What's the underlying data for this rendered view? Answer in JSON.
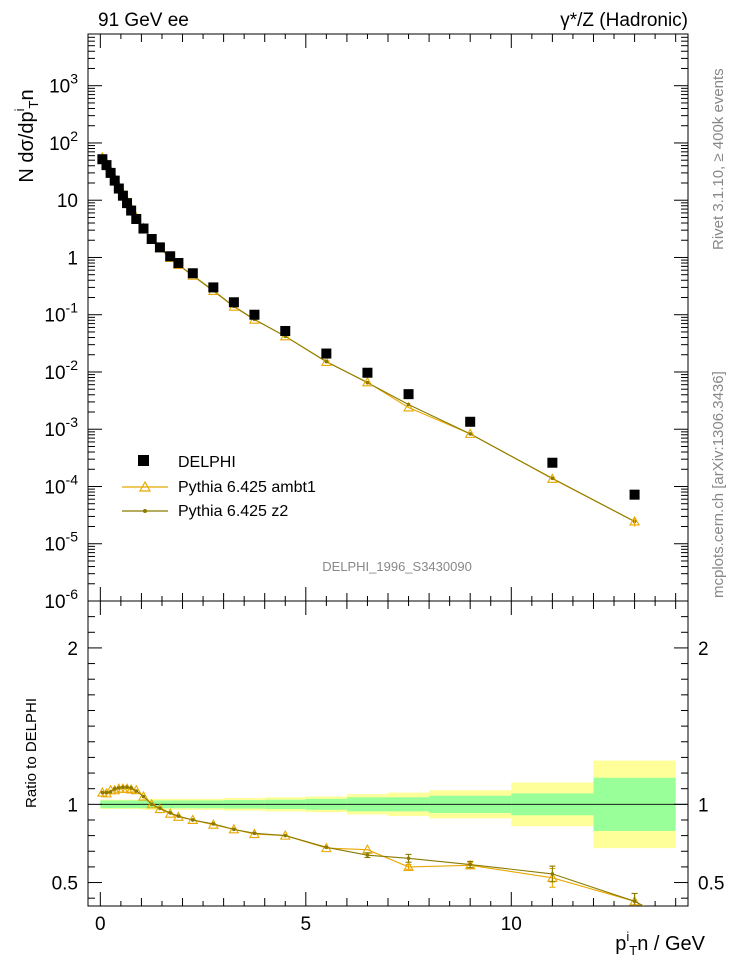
{
  "header": {
    "left": "91 GeV ee",
    "right": "γ*/Z (Hadronic)"
  },
  "side_labels": {
    "rivet": "Rivet 3.1.10, ≥ 400k events",
    "mcplots": "mcplots.cern.ch [arXiv:1306.3436]"
  },
  "watermark": "DELPHI_1996_S3430090",
  "colors": {
    "data": "#000000",
    "ambt1": "#e8a800",
    "z2": "#8b7a00",
    "band_inner": "#99ff99",
    "band_outer": "#ffff99"
  },
  "chart_data": [
    {
      "type": "scatter",
      "ylabel": "N dσ/dp_T^in",
      "yscale": "log",
      "xlim": [
        -0.3,
        14.3
      ],
      "ylim": [
        1e-06,
        8000
      ],
      "ytick_labels": [
        {
          "base": "10",
          "exp": "-6",
          "value": 1e-06
        },
        {
          "base": "10",
          "exp": "-5",
          "value": 1e-05
        },
        {
          "base": "10",
          "exp": "-4",
          "value": 0.0001
        },
        {
          "base": "10",
          "exp": "-3",
          "value": 0.001
        },
        {
          "base": "10",
          "exp": "-2",
          "value": 0.01
        },
        {
          "base": "10",
          "exp": "-1",
          "value": 0.1
        },
        {
          "base": "1",
          "exp": "",
          "value": 1
        },
        {
          "base": "10",
          "exp": "",
          "value": 10
        },
        {
          "base": "10",
          "exp": "2",
          "value": 100
        },
        {
          "base": "10",
          "exp": "3",
          "value": 1000
        }
      ],
      "legend_position": "bottom-left",
      "series": [
        {
          "name": "DELPHI",
          "x": [
            0.05,
            0.15,
            0.25,
            0.35,
            0.45,
            0.55,
            0.65,
            0.75,
            0.875,
            1.05,
            1.25,
            1.45,
            1.7,
            1.9,
            2.25,
            2.75,
            3.25,
            3.75,
            4.5,
            5.5,
            6.5,
            7.5,
            9.0,
            11.0,
            13.0
          ],
          "y": [
            52,
            41,
            30,
            22,
            16,
            12,
            8.9,
            6.6,
            4.7,
            3.2,
            2.1,
            1.5,
            1.05,
            0.8,
            0.53,
            0.3,
            0.165,
            0.1,
            0.052,
            0.021,
            0.0097,
            0.0041,
            0.00135,
            0.00026,
            7.2e-05
          ]
        },
        {
          "name": "Pythia 6.425 ambt1",
          "x": [
            0.05,
            0.15,
            0.25,
            0.35,
            0.45,
            0.55,
            0.65,
            0.75,
            0.875,
            1.05,
            1.25,
            1.45,
            1.7,
            1.9,
            2.25,
            2.75,
            3.25,
            3.75,
            4.5,
            5.5,
            6.5,
            7.5,
            9.0,
            11.0,
            13.0
          ],
          "y": [
            56,
            44,
            33,
            24,
            17.5,
            13.2,
            9.7,
            7.2,
            5.0,
            3.3,
            2.1,
            1.45,
            0.98,
            0.74,
            0.48,
            0.26,
            0.138,
            0.082,
            0.042,
            0.015,
            0.0066,
            0.0024,
            0.00083,
            0.000136,
            2.45e-05
          ]
        },
        {
          "name": "Pythia 6.425 z2",
          "x": [
            0.05,
            0.15,
            0.25,
            0.35,
            0.45,
            0.55,
            0.65,
            0.75,
            0.875,
            1.05,
            1.25,
            1.45,
            1.7,
            1.9,
            2.25,
            2.75,
            3.25,
            3.75,
            4.5,
            5.5,
            6.5,
            7.5,
            9.0,
            11.0,
            13.0
          ],
          "y": [
            56,
            44,
            32.5,
            24,
            17.6,
            13.3,
            9.8,
            7.3,
            5.1,
            3.3,
            2.1,
            1.46,
            0.99,
            0.745,
            0.485,
            0.265,
            0.14,
            0.083,
            0.042,
            0.0152,
            0.0065,
            0.0027,
            0.00083,
            0.000139,
            2.45e-05
          ]
        }
      ]
    },
    {
      "type": "line",
      "ylabel": "Ratio to DELPHI",
      "xlabel": "p_T^in / GeV",
      "xlim": [
        -0.3,
        14.3
      ],
      "ylim": [
        0.35,
        2.3
      ],
      "xticks": [
        0,
        5,
        10
      ],
      "yticks": [
        0.5,
        1,
        2
      ],
      "bands": [
        {
          "xlo": 0.0,
          "xhi": 1.0,
          "inner": 0.025,
          "outer": 0.03
        },
        {
          "xlo": 1.0,
          "xhi": 2.0,
          "inner": 0.025,
          "outer": 0.035
        },
        {
          "xlo": 2.0,
          "xhi": 3.0,
          "inner": 0.025,
          "outer": 0.035
        },
        {
          "xlo": 3.0,
          "xhi": 4.0,
          "inner": 0.027,
          "outer": 0.04
        },
        {
          "xlo": 4.0,
          "xhi": 5.0,
          "inner": 0.03,
          "outer": 0.045
        },
        {
          "xlo": 5.0,
          "xhi": 6.0,
          "inner": 0.035,
          "outer": 0.05
        },
        {
          "xlo": 6.0,
          "xhi": 7.0,
          "inner": 0.045,
          "outer": 0.065
        },
        {
          "xlo": 7.0,
          "xhi": 8.0,
          "inner": 0.045,
          "outer": 0.075
        },
        {
          "xlo": 8.0,
          "xhi": 10.0,
          "inner": 0.055,
          "outer": 0.09
        },
        {
          "xlo": 10.0,
          "xhi": 12.0,
          "inner": 0.07,
          "outer": 0.14
        },
        {
          "xlo": 12.0,
          "xhi": 14.0,
          "inner": 0.17,
          "outer": 0.28
        }
      ],
      "series": [
        {
          "name": "Pythia 6.425 ambt1",
          "x": [
            0.05,
            0.15,
            0.25,
            0.35,
            0.45,
            0.55,
            0.65,
            0.75,
            0.875,
            1.05,
            1.25,
            1.45,
            1.7,
            1.9,
            2.25,
            2.75,
            3.25,
            3.75,
            4.5,
            5.5,
            6.5,
            7.5,
            9.0,
            11.0,
            13.0,
            14.3
          ],
          "y": [
            1.075,
            1.07,
            1.09,
            1.09,
            1.1,
            1.1,
            1.1,
            1.095,
            1.09,
            1.05,
            1.0,
            0.97,
            0.94,
            0.92,
            0.9,
            0.87,
            0.84,
            0.81,
            0.8,
            0.72,
            0.71,
            0.6,
            0.61,
            0.53,
            0.38,
            0.2
          ],
          "yerr": [
            0,
            0,
            0,
            0,
            0,
            0,
            0,
            0,
            0,
            0,
            0,
            0,
            0,
            0,
            0,
            0,
            0,
            0,
            0,
            0,
            0,
            0.015,
            0.02,
            0.06,
            0.05,
            0
          ]
        },
        {
          "name": "Pythia 6.425 z2",
          "x": [
            0.05,
            0.15,
            0.25,
            0.35,
            0.45,
            0.55,
            0.65,
            0.75,
            0.875,
            1.05,
            1.25,
            1.45,
            1.7,
            1.9,
            2.25,
            2.75,
            3.25,
            3.75,
            4.5,
            5.5,
            6.5,
            7.5,
            9.0,
            11.0,
            13.0,
            14.3
          ],
          "y": [
            1.075,
            1.075,
            1.08,
            1.1,
            1.105,
            1.11,
            1.11,
            1.105,
            1.085,
            1.05,
            1.0,
            0.975,
            0.945,
            0.925,
            0.9,
            0.875,
            0.84,
            0.815,
            0.8,
            0.725,
            0.675,
            0.655,
            0.615,
            0.555,
            0.38,
            0.2
          ],
          "yerr": [
            0,
            0,
            0,
            0,
            0,
            0,
            0,
            0,
            0,
            0,
            0,
            0,
            0,
            0,
            0,
            0,
            0,
            0,
            0,
            0,
            0.015,
            0.025,
            0.02,
            0.05,
            0.05,
            0
          ]
        }
      ]
    }
  ]
}
